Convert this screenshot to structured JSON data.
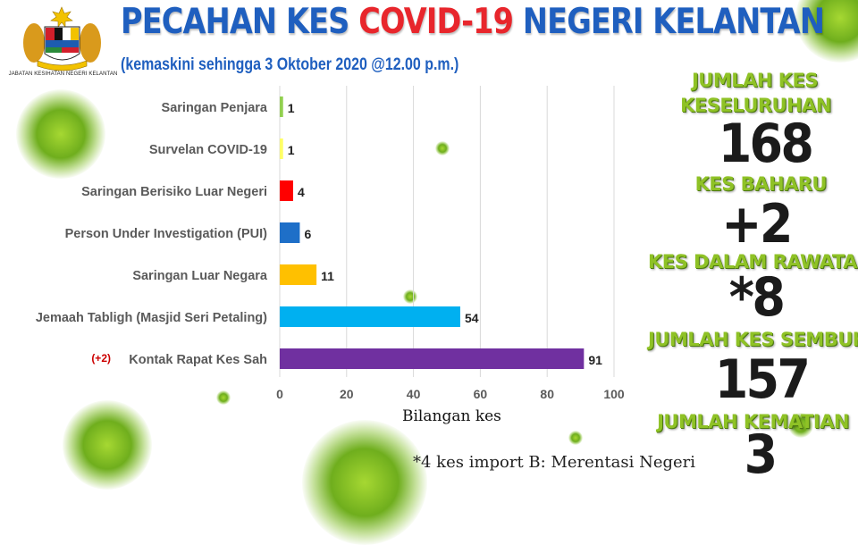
{
  "header": {
    "title_part1": "PECAHAN KES ",
    "title_part2": "COVID-19",
    "title_part3": " NEGERI KELANTAN",
    "subtitle": "(kemaskini sehingga 3 Oktober 2020 @12.00 p.m.)",
    "logo_caption": "JABATAN KESIHATAN NEGERI KELANTAN",
    "logo_icon": "malaysia-coat-of-arms-icon"
  },
  "chart_data": {
    "type": "bar",
    "orientation": "horizontal",
    "categories": [
      "Saringan Penjara",
      "Survelan COVID-19",
      "Saringan Berisiko Luar Negeri",
      "Person Under Investigation (PUI)",
      "Saringan Luar Negara",
      "Jemaah Tabligh (Masjid Seri Petaling)",
      "Kontak Rapat Kes Sah"
    ],
    "values": [
      1,
      1,
      4,
      6,
      11,
      54,
      91
    ],
    "colors": [
      "#92d050",
      "#ffff66",
      "#ff0000",
      "#1e6fc8",
      "#ffc000",
      "#00b0f0",
      "#7030a0"
    ],
    "annotations": [
      {
        "category": "Kontak Rapat Kes Sah",
        "text": "(+2)",
        "color": "#cc0000"
      }
    ],
    "xlabel": "Bilangan kes",
    "xlim": [
      0,
      100
    ],
    "xticks": [
      0,
      20,
      40,
      60,
      80,
      100
    ],
    "grid": true
  },
  "stats": {
    "total_label_line1": "JUMLAH KES",
    "total_label_line2": "KESELURUHAN",
    "total_value": "168",
    "new_label": "KES BAHARU",
    "new_value": "+2",
    "treatment_label": "KES DALAM RAWATAN",
    "treatment_value": "*8",
    "recovered_label": "JUMLAH KES SEMBUH",
    "recovered_value": "157",
    "death_label": "JUMLAH KEMATIAN",
    "death_value": "3"
  },
  "footnote": "*4 kes import B: Merentasi Negeri",
  "colors": {
    "title_blue": "#1f5fbf",
    "title_red": "#e8262c",
    "stat_green": "#8fc226"
  }
}
